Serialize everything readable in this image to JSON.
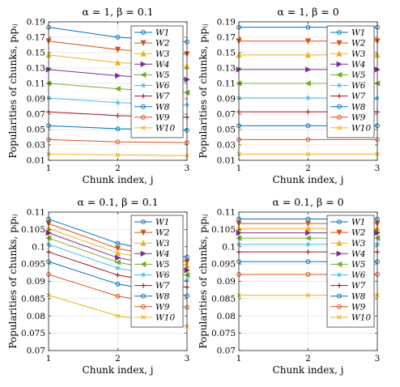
{
  "chart_data": [
    {
      "type": "line",
      "title": "α = 1, β = 0.1",
      "xlabel": "Chunk index, j",
      "ylabel": "Popularities of chunks, pᵢpᵢⱼ",
      "x": [
        1,
        2,
        3
      ],
      "xticks": [
        "1",
        "2",
        "3"
      ],
      "xlim": [
        1,
        3
      ],
      "ylim": [
        0.01,
        0.19
      ],
      "yticks": [
        "0.01",
        "0.03",
        "0.05",
        "0.07",
        "0.09",
        "0.11",
        "0.13",
        "0.15",
        "0.17",
        "0.19"
      ],
      "ytick_values": [
        0.01,
        0.03,
        0.05,
        0.07,
        0.09,
        0.11,
        0.13,
        0.15,
        0.17,
        0.19
      ],
      "grid": true,
      "legend": "top-right",
      "series": [
        {
          "name": "W1",
          "values": [
            0.183,
            0.17,
            0.164
          ]
        },
        {
          "name": "W2",
          "values": [
            0.165,
            0.154,
            0.148
          ]
        },
        {
          "name": "W3",
          "values": [
            0.147,
            0.137,
            0.132
          ]
        },
        {
          "name": "W4",
          "values": [
            0.128,
            0.12,
            0.115
          ]
        },
        {
          "name": "W5",
          "values": [
            0.11,
            0.103,
            0.098
          ]
        },
        {
          "name": "W6",
          "values": [
            0.091,
            0.085,
            0.082
          ]
        },
        {
          "name": "W7",
          "values": [
            0.073,
            0.068,
            0.066
          ]
        },
        {
          "name": "W8",
          "values": [
            0.055,
            0.051,
            0.049
          ]
        },
        {
          "name": "W9",
          "values": [
            0.037,
            0.034,
            0.033
          ]
        },
        {
          "name": "W10",
          "values": [
            0.018,
            0.017,
            0.016
          ]
        }
      ]
    },
    {
      "type": "line",
      "title": "α = 1, β = 0",
      "xlabel": "Chunk index, j",
      "ylabel": "Popularities of chunks, pᵢpᵢⱼ",
      "x": [
        1,
        2,
        3
      ],
      "xticks": [
        "1",
        "2",
        "3"
      ],
      "xlim": [
        1,
        3
      ],
      "ylim": [
        0.01,
        0.19
      ],
      "yticks": [
        "0.01",
        "0.03",
        "0.05",
        "0.07",
        "0.09",
        "0.11",
        "0.13",
        "0.15",
        "0.17",
        "0.19"
      ],
      "ytick_values": [
        0.01,
        0.03,
        0.05,
        0.07,
        0.09,
        0.11,
        0.13,
        0.15,
        0.17,
        0.19
      ],
      "grid": true,
      "legend": "top-right",
      "series": [
        {
          "name": "W1",
          "values": [
            0.183,
            0.183,
            0.183
          ]
        },
        {
          "name": "W2",
          "values": [
            0.165,
            0.165,
            0.165
          ]
        },
        {
          "name": "W3",
          "values": [
            0.147,
            0.147,
            0.147
          ]
        },
        {
          "name": "W4",
          "values": [
            0.128,
            0.128,
            0.128
          ]
        },
        {
          "name": "W5",
          "values": [
            0.11,
            0.11,
            0.11
          ]
        },
        {
          "name": "W6",
          "values": [
            0.091,
            0.091,
            0.091
          ]
        },
        {
          "name": "W7",
          "values": [
            0.073,
            0.073,
            0.073
          ]
        },
        {
          "name": "W8",
          "values": [
            0.055,
            0.055,
            0.055
          ]
        },
        {
          "name": "W9",
          "values": [
            0.037,
            0.037,
            0.037
          ]
        },
        {
          "name": "W10",
          "values": [
            0.018,
            0.018,
            0.018
          ]
        }
      ]
    },
    {
      "type": "line",
      "title": "α = 0.1, β = 0.1",
      "xlabel": "Chunk index, j",
      "ylabel": "Popularities of chunks, pᵢpᵢⱼ",
      "x": [
        1,
        2,
        3
      ],
      "xticks": [
        "1",
        "2",
        "3"
      ],
      "xlim": [
        1,
        3
      ],
      "ylim": [
        0.07,
        0.11
      ],
      "yticks": [
        "0.07",
        "0.075",
        "0.08",
        "0.085",
        "0.09",
        "0.095",
        "0.1",
        "0.105",
        "0.11"
      ],
      "ytick_values": [
        0.07,
        0.075,
        0.08,
        0.085,
        0.09,
        0.095,
        0.1,
        0.105,
        0.11
      ],
      "grid": true,
      "legend": "top-right",
      "series": [
        {
          "name": "W1",
          "values": [
            0.108,
            0.101,
            0.097
          ]
        },
        {
          "name": "W2",
          "values": [
            0.1067,
            0.0995,
            0.0957
          ]
        },
        {
          "name": "W3",
          "values": [
            0.1053,
            0.0982,
            0.0945
          ]
        },
        {
          "name": "W4",
          "values": [
            0.104,
            0.0968,
            0.0932
          ]
        },
        {
          "name": "W5",
          "values": [
            0.1025,
            0.0955,
            0.0918
          ]
        },
        {
          "name": "W6",
          "values": [
            0.1007,
            0.0938,
            0.0902
          ]
        },
        {
          "name": "W7",
          "values": [
            0.0985,
            0.0918,
            0.0883
          ]
        },
        {
          "name": "W8",
          "values": [
            0.0957,
            0.0892,
            0.0858
          ]
        },
        {
          "name": "W9",
          "values": [
            0.092,
            0.0857,
            0.0825
          ]
        },
        {
          "name": "W10",
          "values": [
            0.086,
            0.08,
            0.077
          ]
        }
      ]
    },
    {
      "type": "line",
      "title": "α = 0.1, β = 0",
      "xlabel": "Chunk index, j",
      "ylabel": "Popularities of chunks, pᵢpᵢⱼ",
      "x": [
        1,
        2,
        3
      ],
      "xticks": [
        "1",
        "2",
        "3"
      ],
      "xlim": [
        1,
        3
      ],
      "ylim": [
        0.07,
        0.11
      ],
      "yticks": [
        "0.07",
        "0.075",
        "0.08",
        "0.085",
        "0.09",
        "0.095",
        "0.1",
        "0.105",
        "0.11"
      ],
      "ytick_values": [
        0.07,
        0.075,
        0.08,
        0.085,
        0.09,
        0.095,
        0.1,
        0.105,
        0.11
      ],
      "grid": true,
      "legend": "top-right",
      "series": [
        {
          "name": "W1",
          "values": [
            0.108,
            0.108,
            0.108
          ]
        },
        {
          "name": "W2",
          "values": [
            0.1067,
            0.1067,
            0.1067
          ]
        },
        {
          "name": "W3",
          "values": [
            0.1053,
            0.1053,
            0.1053
          ]
        },
        {
          "name": "W4",
          "values": [
            0.104,
            0.104,
            0.104
          ]
        },
        {
          "name": "W5",
          "values": [
            0.1025,
            0.1025,
            0.1025
          ]
        },
        {
          "name": "W6",
          "values": [
            0.1007,
            0.1007,
            0.1007
          ]
        },
        {
          "name": "W7",
          "values": [
            0.0985,
            0.0985,
            0.0985
          ]
        },
        {
          "name": "W8",
          "values": [
            0.0957,
            0.0957,
            0.0957
          ]
        },
        {
          "name": "W9",
          "values": [
            0.092,
            0.092,
            0.092
          ]
        },
        {
          "name": "W10",
          "values": [
            0.086,
            0.086,
            0.086
          ]
        }
      ]
    }
  ],
  "series_colors": [
    "#0072BD",
    "#D95319",
    "#EDB120",
    "#7E2F8E",
    "#77AC30",
    "#4DBEEE",
    "#A2142F",
    "#0072BD",
    "#D95319",
    "#EDB120"
  ],
  "series_markers": [
    "circle",
    "triangle-down",
    "triangle-up",
    "triangle-right",
    "triangle-left",
    "star",
    "plus",
    "circle",
    "circle",
    "cross"
  ]
}
